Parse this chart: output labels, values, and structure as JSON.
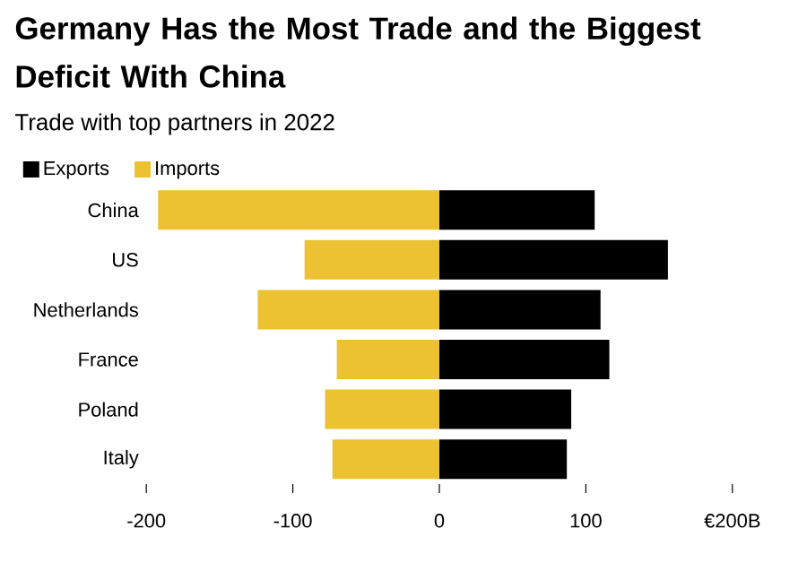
{
  "chart_data": {
    "type": "bar",
    "orientation": "horizontal",
    "title": "Germany Has the Most Trade and the Biggest Deficit With China",
    "subtitle": "Trade with top partners in 2022",
    "categories": [
      "China",
      "US",
      "Netherlands",
      "France",
      "Poland",
      "Italy"
    ],
    "series": [
      {
        "name": "Exports",
        "color": "#000000",
        "values": [
          106,
          156,
          110,
          116,
          90,
          87
        ]
      },
      {
        "name": "Imports",
        "color": "#ecc232",
        "values": [
          -192,
          -92,
          -124,
          -70,
          -78,
          -73
        ]
      }
    ],
    "xlim": [
      -200,
      200
    ],
    "xticks": [
      -200,
      -100,
      0,
      100,
      {
        "value": 200,
        "label": "€200B"
      }
    ],
    "stacked": true,
    "legend": "top left"
  }
}
